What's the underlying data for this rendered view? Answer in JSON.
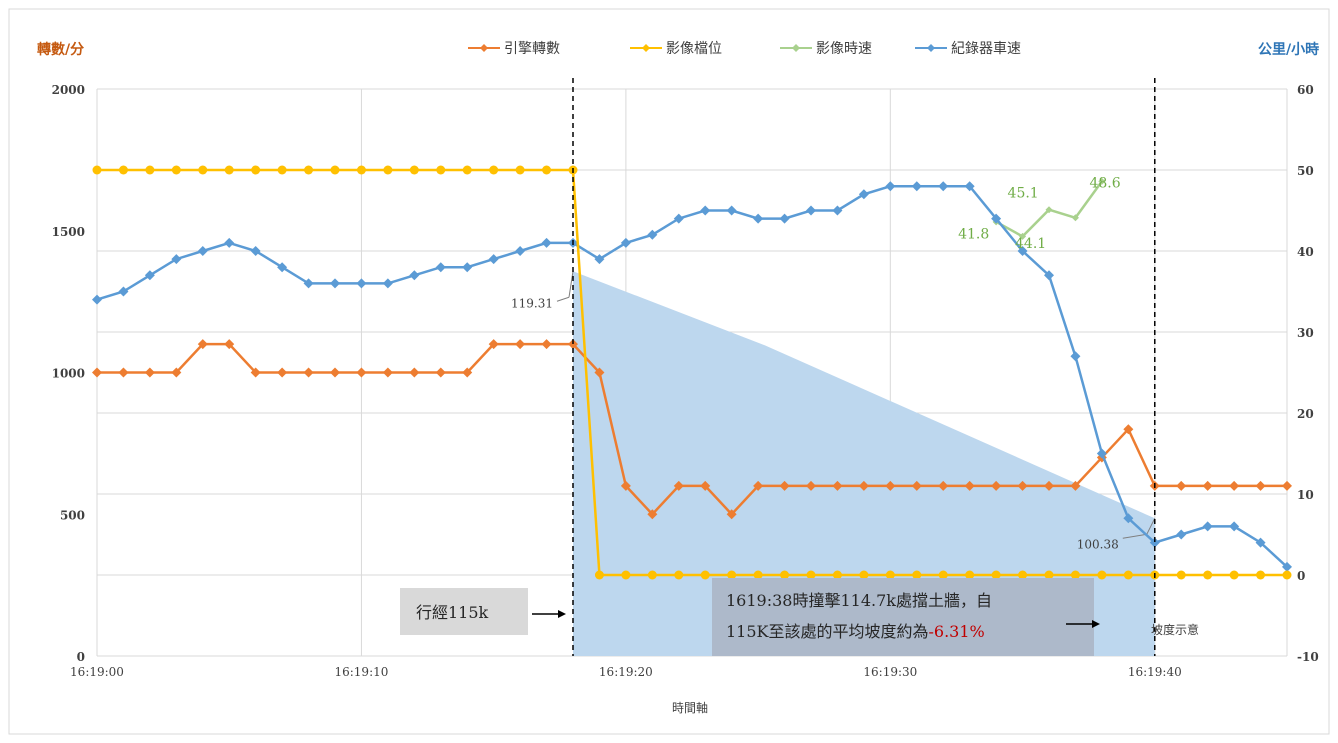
{
  "chart_data": {
    "type": "line",
    "left_axis": {
      "title": "轉數/分",
      "min": 0,
      "max": 2000,
      "ticks": [
        0,
        500,
        1000,
        1500,
        2000
      ]
    },
    "right_axis": {
      "title": "公里/小時",
      "min": -10,
      "max": 60,
      "ticks": [
        -10,
        0,
        10,
        20,
        30,
        40,
        50,
        60
      ]
    },
    "xlabel": "時間軸",
    "x_ticks": [
      "16:19:00",
      "16:19:10",
      "16:19:20",
      "16:19:30",
      "16:19:40"
    ],
    "x_start": 0,
    "x_end": 45,
    "grid": true,
    "legend_position": "top",
    "series": [
      {
        "name": "引擎轉數",
        "axis": "left",
        "color": "#ed7d31",
        "start": 0,
        "values": [
          1000,
          1000,
          1000,
          1000,
          1100,
          1100,
          1000,
          1000,
          1000,
          1000,
          1000,
          1000,
          1000,
          1000,
          1000,
          1100,
          1100,
          1100,
          1100,
          1000,
          600,
          500,
          600,
          600,
          500,
          600,
          600,
          600,
          600,
          600,
          600,
          600,
          600,
          600,
          600,
          600,
          600,
          600,
          700,
          800,
          600,
          600,
          600,
          600,
          600,
          600
        ]
      },
      {
        "name": "影像檔位",
        "axis": "right",
        "color": "#ffc000",
        "start": 0,
        "values": [
          50,
          50,
          50,
          50,
          50,
          50,
          50,
          50,
          50,
          50,
          50,
          50,
          50,
          50,
          50,
          50,
          50,
          50,
          50,
          0,
          0,
          0,
          0,
          0,
          0,
          0,
          0,
          0,
          0,
          0,
          0,
          0,
          0,
          0,
          0,
          0,
          0,
          0,
          0,
          0,
          0,
          0,
          0,
          0,
          0,
          0
        ]
      },
      {
        "name": "影像時速",
        "axis": "right",
        "color": "#a9d18e",
        "start": 34,
        "values": [
          43.6,
          41.8,
          45.1,
          44.1,
          48.6
        ]
      },
      {
        "name": "紀錄器車速",
        "axis": "right",
        "color": "#5b9bd5",
        "start": 0,
        "values": [
          34,
          35,
          37,
          39,
          40,
          41,
          40,
          38,
          36,
          36,
          36,
          36,
          37,
          38,
          38,
          39,
          40,
          41,
          41,
          39,
          41,
          42,
          44,
          45,
          45,
          44,
          44,
          45,
          45,
          47,
          48,
          48,
          48,
          48,
          44,
          40,
          37,
          27,
          15,
          7,
          4,
          5,
          6,
          6,
          4,
          1
        ]
      }
    ],
    "speed_labels": [
      {
        "text": "41.8",
        "index": 35,
        "value": 41.8
      },
      {
        "text": "45.1",
        "index": 36,
        "value": 45.1
      },
      {
        "text": "44.1",
        "index": 37,
        "value": 44.1
      },
      {
        "text": "48.6",
        "index": 38,
        "value": 48.6
      }
    ],
    "slope_area": {
      "legend": "坡度示意",
      "color": "#bdd7ee",
      "start_index": 18,
      "end_index": 40,
      "start_label": "119.31",
      "end_label": "100.38",
      "start_value": 37.5,
      "end_value": 7
    },
    "markers": [
      {
        "index": 18,
        "label": "行經115k"
      },
      {
        "index": 40,
        "label_line1": "1619:38時撞擊114.7k處擋土牆，自",
        "label_line2_prefix": "115K至該處的平均坡度約為",
        "label_highlight": "-6.31%"
      }
    ]
  }
}
